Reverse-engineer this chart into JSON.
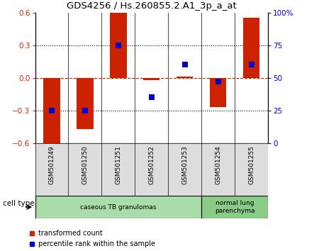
{
  "title": "GDS4256 / Hs.260855.2.A1_3p_a_at",
  "samples": [
    "GSM501249",
    "GSM501250",
    "GSM501251",
    "GSM501252",
    "GSM501253",
    "GSM501254",
    "GSM501255"
  ],
  "red_values": [
    -0.6,
    -0.47,
    0.6,
    -0.02,
    0.01,
    -0.27,
    0.55
  ],
  "blue_values": [
    25,
    25,
    75,
    35,
    60,
    47,
    60
  ],
  "left_ylim": [
    -0.6,
    0.6
  ],
  "right_ylim": [
    0,
    100
  ],
  "left_yticks": [
    -0.6,
    -0.3,
    0,
    0.3,
    0.6
  ],
  "right_yticks": [
    0,
    25,
    50,
    75,
    100
  ],
  "right_yticklabels": [
    "0",
    "25",
    "50",
    "75",
    "100%"
  ],
  "bar_color": "#cc2200",
  "dot_color": "#0000cc",
  "cell_type_groups": [
    {
      "label": "caseous TB granulomas",
      "indices": [
        0,
        1,
        2,
        3,
        4
      ],
      "color": "#aaddaa"
    },
    {
      "label": "normal lung\nparenchyma",
      "indices": [
        5,
        6
      ],
      "color": "#88cc88"
    }
  ],
  "cell_type_label": "cell type",
  "legend_red": "transformed count",
  "legend_blue": "percentile rank within the sample",
  "bar_width": 0.5,
  "dot_size": 40,
  "figsize": [
    4.5,
    3.54
  ],
  "dpi": 100
}
